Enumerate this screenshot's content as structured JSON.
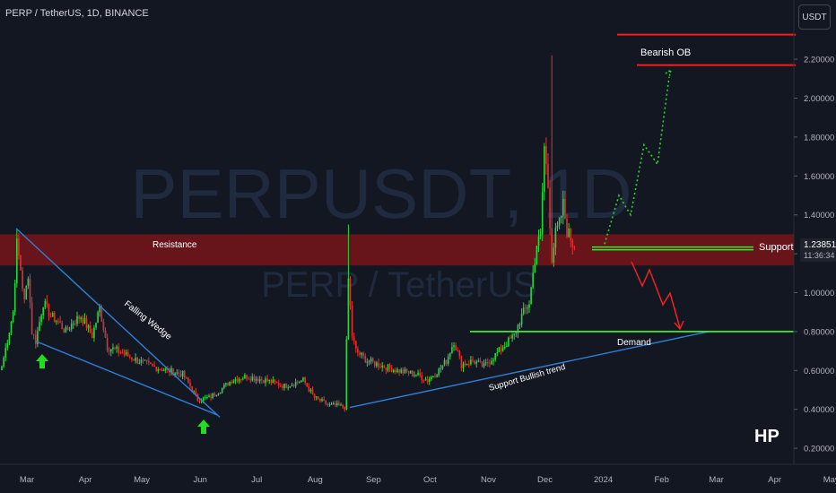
{
  "header": {
    "title": "PERP / TetherUS, 1D, BINANCE",
    "currency": "USDT"
  },
  "watermark": {
    "symbol": "PERPUSDT, 1D",
    "description": "PERP / TetherUS"
  },
  "price_label": {
    "value": "1.23851",
    "countdown": "11:36:34"
  },
  "signature": "HP",
  "colors": {
    "background": "#131722",
    "up": "#26d93a",
    "down": "#e0302f",
    "zone": "#7a1419",
    "trendline": "#2f7fd6",
    "support_level": "#2ff02f",
    "bearish_ob": "#ff1a1a",
    "projection_up": "#2fd12f",
    "projection_down": "#ff2020",
    "arrow": "#22dd22"
  },
  "chart_data": {
    "type": "candlestick",
    "title": "PERP / TetherUS, 1D, BINANCE",
    "xlabel": "",
    "ylabel": "",
    "x_ticks": [
      "Mar",
      "Apr",
      "May",
      "Jun",
      "Jul",
      "Aug",
      "Sep",
      "Oct",
      "Nov",
      "Dec",
      "2024",
      "Feb",
      "Mar",
      "Apr",
      "May"
    ],
    "y_ticks": [
      "0.20000",
      "0.40000",
      "0.60000",
      "0.80000",
      "1.00000",
      "1.20000",
      "1.40000",
      "1.60000",
      "1.80000",
      "2.00000",
      "2.20000"
    ],
    "ylim": [
      0.1,
      2.35
    ],
    "grid": false,
    "close_anchors": [
      [
        0,
        0.62
      ],
      [
        6,
        0.9
      ],
      [
        8,
        1.25
      ],
      [
        10,
        1.12
      ],
      [
        12,
        0.95
      ],
      [
        14,
        1.1
      ],
      [
        16,
        0.8
      ],
      [
        18,
        0.75
      ],
      [
        22,
        0.95
      ],
      [
        26,
        0.88
      ],
      [
        30,
        0.85
      ],
      [
        34,
        0.8
      ],
      [
        38,
        0.85
      ],
      [
        42,
        0.88
      ],
      [
        48,
        0.78
      ],
      [
        52,
        0.92
      ],
      [
        56,
        0.72
      ],
      [
        62,
        0.7
      ],
      [
        70,
        0.66
      ],
      [
        80,
        0.62
      ],
      [
        88,
        0.6
      ],
      [
        96,
        0.58
      ],
      [
        100,
        0.52
      ],
      [
        104,
        0.45
      ],
      [
        110,
        0.46
      ],
      [
        116,
        0.5
      ],
      [
        122,
        0.55
      ],
      [
        130,
        0.57
      ],
      [
        140,
        0.55
      ],
      [
        150,
        0.52
      ],
      [
        160,
        0.55
      ],
      [
        166,
        0.46
      ],
      [
        174,
        0.42
      ],
      [
        178,
        0.42
      ],
      [
        182,
        0.41
      ],
      [
        184,
        1.07
      ],
      [
        186,
        0.78
      ],
      [
        188,
        0.7
      ],
      [
        194,
        0.65
      ],
      [
        200,
        0.63
      ],
      [
        210,
        0.6
      ],
      [
        220,
        0.58
      ],
      [
        226,
        0.55
      ],
      [
        232,
        0.6
      ],
      [
        236,
        0.65
      ],
      [
        240,
        0.75
      ],
      [
        244,
        0.63
      ],
      [
        250,
        0.65
      ],
      [
        256,
        0.62
      ],
      [
        262,
        0.68
      ],
      [
        266,
        0.72
      ],
      [
        272,
        0.78
      ],
      [
        276,
        0.88
      ],
      [
        280,
        0.95
      ],
      [
        282,
        1.1
      ],
      [
        284,
        1.25
      ],
      [
        286,
        1.28
      ],
      [
        288,
        1.75
      ],
      [
        290,
        1.55
      ],
      [
        292,
        1.18
      ],
      [
        294,
        1.3
      ],
      [
        296,
        1.35
      ],
      [
        298,
        1.45
      ],
      [
        300,
        1.32
      ],
      [
        302,
        1.28
      ],
      [
        304,
        1.23
      ]
    ],
    "annotations": [
      {
        "label": "Resistance",
        "type": "zone",
        "y_range": [
          1.14,
          1.3
        ]
      },
      {
        "label": "Support",
        "type": "level",
        "y": 1.23
      },
      {
        "label": "Demand",
        "type": "level",
        "y": 0.8
      },
      {
        "label": "Bearish OB",
        "type": "level",
        "y": 2.17
      },
      {
        "label": "Falling Wedge",
        "type": "pattern"
      },
      {
        "label": "Support Bullish trend",
        "type": "trendline"
      }
    ]
  }
}
